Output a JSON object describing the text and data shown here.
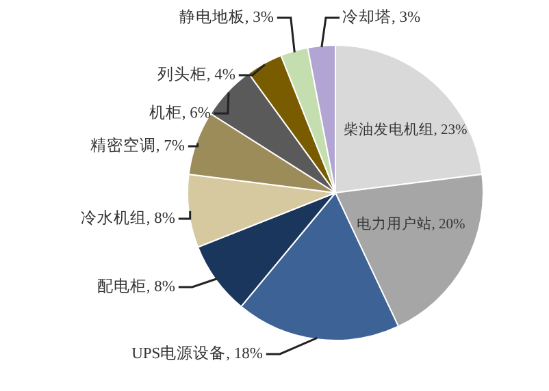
{
  "chart_data": {
    "type": "pie",
    "categories": [
      "柴油发电机组",
      "电力用户站",
      "UPS电源设备",
      "配电柜",
      "冷水机组",
      "精密空调",
      "机柜",
      "列头柜",
      "静电地板",
      "冷却塔"
    ],
    "values": [
      23,
      20,
      18,
      8,
      8,
      7,
      6,
      4,
      3,
      3
    ],
    "value_labels": [
      "23%",
      "20%",
      "18%",
      "8%",
      "8%",
      "7%",
      "6%",
      "4%",
      "3%",
      "3%"
    ],
    "colors": [
      "#d9d9d9",
      "#a6a6a6",
      "#3d6396",
      "#1b365d",
      "#d6c9a0",
      "#9c8c5a",
      "#5a5a5a",
      "#7a5c00",
      "#c5deb0",
      "#b3a5d3"
    ]
  }
}
